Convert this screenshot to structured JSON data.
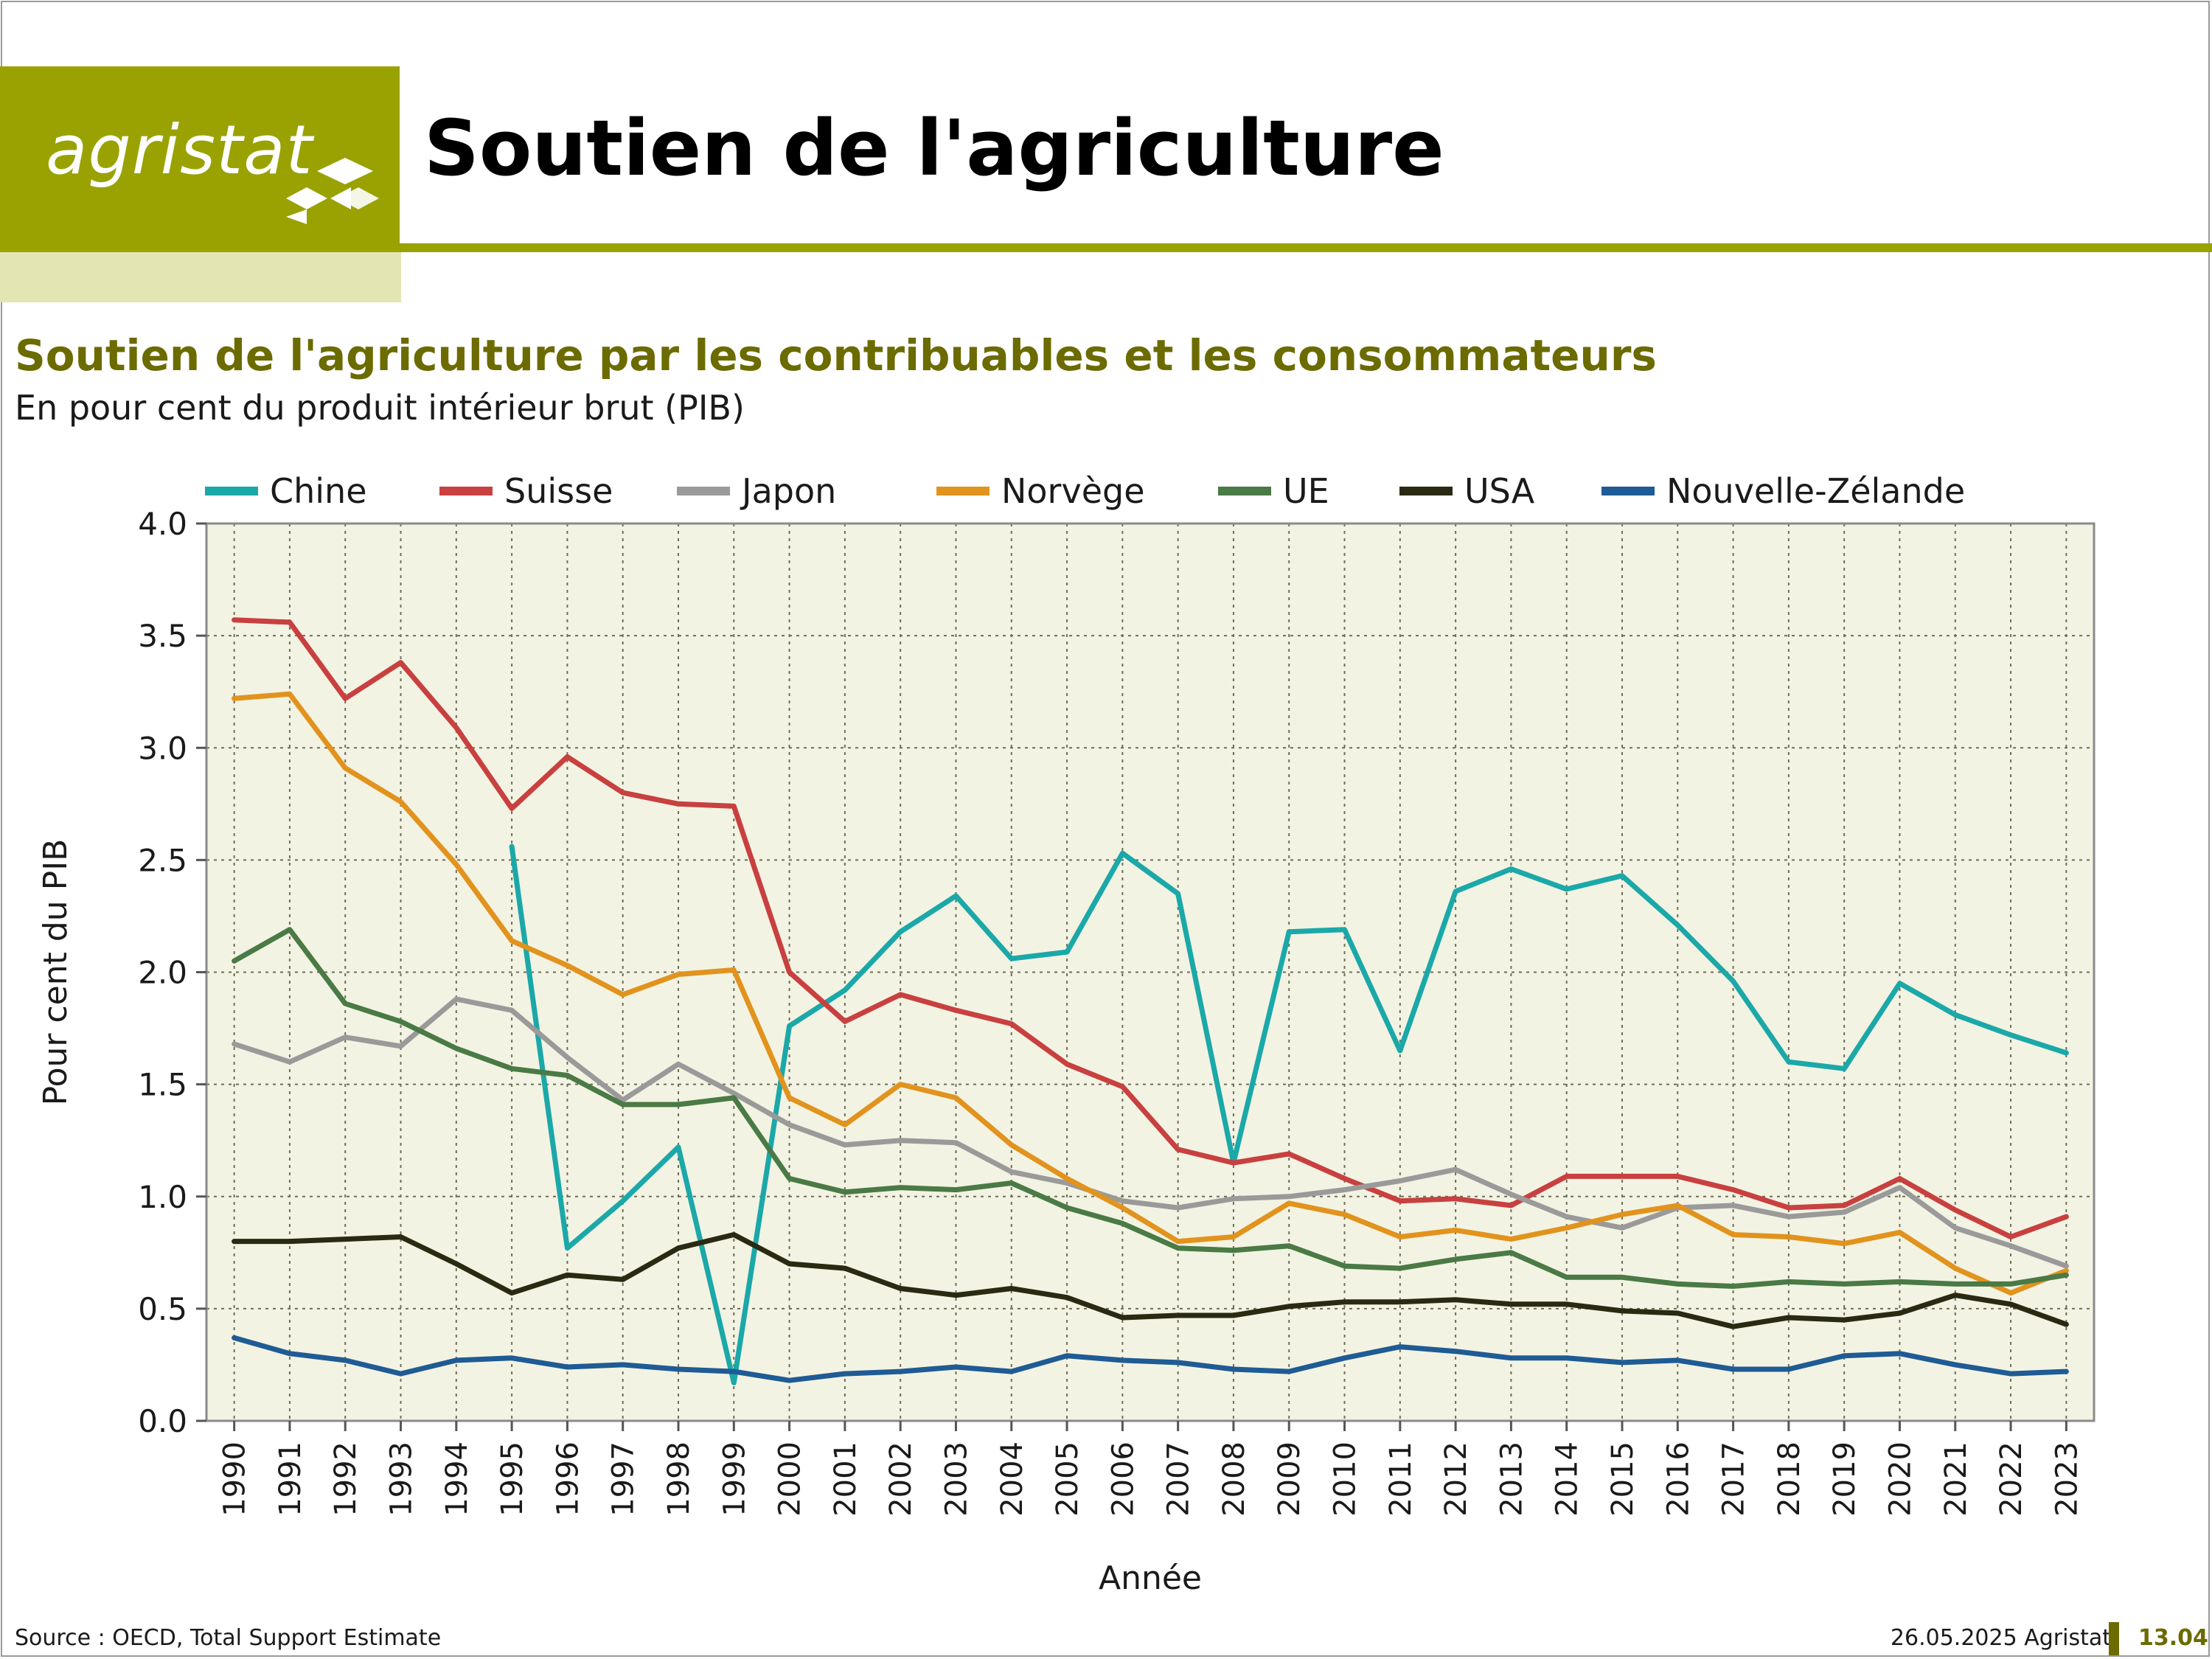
{
  "logo": {
    "text": "agristat"
  },
  "page_title": "Soutien de l'agriculture",
  "chart_title": "Soutien de l'agriculture par les contribuables et les consommateurs",
  "chart_subtitle": "En pour cent du produit intérieur brut (PIB)",
  "footer": {
    "source": "Source : OECD, Total Support Estimate",
    "date": "26.05.2025 Agristat",
    "page": "13.04"
  },
  "colors": {
    "brand": "#99a200",
    "brand_light": "#e3e5b3",
    "title_olive": "#6b6b00",
    "plot_bg": "#f3f3e3"
  },
  "chart_data": {
    "type": "line",
    "xlabel": "Année",
    "ylabel": "Pour cent du PIB",
    "ylim": [
      0,
      4
    ],
    "yticks": [
      "0.0",
      "0.5",
      "1.0",
      "1.5",
      "2.0",
      "2.5",
      "3.0",
      "3.5",
      "4.0"
    ],
    "grid": true,
    "legend_position": "top",
    "x": [
      1990,
      1991,
      1992,
      1993,
      1994,
      1995,
      1996,
      1997,
      1998,
      1999,
      2000,
      2001,
      2002,
      2003,
      2004,
      2005,
      2006,
      2007,
      2008,
      2009,
      2010,
      2011,
      2012,
      2013,
      2014,
      2015,
      2016,
      2017,
      2018,
      2019,
      2020,
      2021,
      2022,
      2023
    ],
    "series": [
      {
        "name": "Chine",
        "color": "#1ba8a8",
        "values": [
          null,
          null,
          null,
          null,
          null,
          2.56,
          0.77,
          0.98,
          1.22,
          0.17,
          1.76,
          1.92,
          2.18,
          2.34,
          2.06,
          2.09,
          2.53,
          2.35,
          1.15,
          2.18,
          2.19,
          1.65,
          2.36,
          2.46,
          2.37,
          2.43,
          2.21,
          1.96,
          1.6,
          1.57,
          1.95,
          1.81,
          1.72,
          1.64
        ]
      },
      {
        "name": "Suisse",
        "color": "#c8403f",
        "values": [
          3.57,
          3.56,
          3.22,
          3.38,
          3.09,
          2.73,
          2.96,
          2.8,
          2.75,
          2.74,
          2.0,
          1.78,
          1.9,
          1.83,
          1.77,
          1.59,
          1.49,
          1.21,
          1.15,
          1.19,
          1.08,
          0.98,
          0.99,
          0.96,
          1.09,
          1.09,
          1.09,
          1.03,
          0.95,
          0.96,
          1.08,
          0.94,
          0.82,
          0.91
        ]
      },
      {
        "name": "Japon",
        "color": "#9a9a9a",
        "values": [
          1.68,
          1.6,
          1.71,
          1.67,
          1.88,
          1.83,
          1.62,
          1.43,
          1.59,
          1.46,
          1.32,
          1.23,
          1.25,
          1.24,
          1.11,
          1.06,
          0.98,
          0.95,
          0.99,
          1.0,
          1.03,
          1.07,
          1.12,
          1.01,
          0.91,
          0.86,
          0.95,
          0.96,
          0.91,
          0.93,
          1.04,
          0.86,
          0.78,
          0.69
        ]
      },
      {
        "name": "Norvège",
        "color": "#e1931d",
        "values": [
          3.22,
          3.24,
          2.91,
          2.76,
          2.48,
          2.14,
          2.03,
          1.9,
          1.99,
          2.01,
          1.44,
          1.32,
          1.5,
          1.44,
          1.23,
          1.08,
          0.95,
          0.8,
          0.82,
          0.97,
          0.92,
          0.82,
          0.85,
          0.81,
          0.86,
          0.92,
          0.96,
          0.83,
          0.82,
          0.79,
          0.84,
          0.68,
          0.57,
          0.67
        ]
      },
      {
        "name": "UE",
        "color": "#4a7a45",
        "values": [
          2.05,
          2.19,
          1.86,
          1.78,
          1.66,
          1.57,
          1.54,
          1.41,
          1.41,
          1.44,
          1.08,
          1.02,
          1.04,
          1.03,
          1.06,
          0.95,
          0.88,
          0.77,
          0.76,
          0.78,
          0.69,
          0.68,
          0.72,
          0.75,
          0.64,
          0.64,
          0.61,
          0.6,
          0.62,
          0.61,
          0.62,
          0.61,
          0.61,
          0.65
        ]
      },
      {
        "name": "USA",
        "color": "#2a2a12",
        "values": [
          0.8,
          0.8,
          0.81,
          0.82,
          0.7,
          0.57,
          0.65,
          0.63,
          0.77,
          0.83,
          0.7,
          0.68,
          0.59,
          0.56,
          0.59,
          0.55,
          0.46,
          0.47,
          0.47,
          0.51,
          0.53,
          0.53,
          0.54,
          0.52,
          0.52,
          0.49,
          0.48,
          0.42,
          0.46,
          0.45,
          0.48,
          0.56,
          0.52,
          0.43
        ]
      },
      {
        "name": "Nouvelle-Zélande",
        "color": "#1f5b94",
        "values": [
          0.37,
          0.3,
          0.27,
          0.21,
          0.27,
          0.28,
          0.24,
          0.25,
          0.23,
          0.22,
          0.18,
          0.21,
          0.22,
          0.24,
          0.22,
          0.29,
          0.27,
          0.26,
          0.23,
          0.22,
          0.28,
          0.33,
          0.31,
          0.28,
          0.28,
          0.26,
          0.27,
          0.23,
          0.23,
          0.29,
          0.3,
          0.25,
          0.21,
          0.22
        ]
      }
    ]
  }
}
